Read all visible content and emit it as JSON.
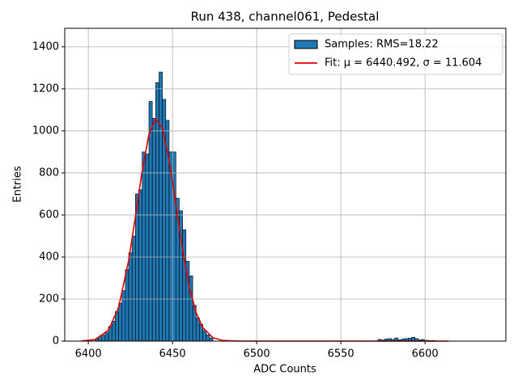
{
  "chart_data": {
    "type": "histogram",
    "title": "Run 438, channel061, Pedestal",
    "xlabel": "ADC Counts",
    "ylabel": "Entries",
    "name": "Samples: RMS=18.22",
    "color": "#1f77b4",
    "bins": [
      6404,
      6406,
      6408,
      6410,
      6412,
      6414,
      6416,
      6418,
      6420,
      6422,
      6424,
      6426,
      6428,
      6430,
      6432,
      6434,
      6436,
      6438,
      6440,
      6442,
      6444,
      6446,
      6448,
      6450,
      6452,
      6454,
      6456,
      6458,
      6460,
      6462,
      6464,
      6466,
      6468,
      6470,
      6472,
      6474,
      6476,
      6478,
      6480,
      6482,
      6484,
      6486,
      6488,
      6490,
      6492,
      6494,
      6496,
      6498,
      6500,
      6502,
      6504,
      6506,
      6508,
      6510,
      6512,
      6514,
      6516,
      6518,
      6520,
      6522,
      6524,
      6526,
      6528,
      6530,
      6532,
      6534,
      6536,
      6538,
      6540,
      6542,
      6544,
      6546,
      6548,
      6550,
      6552,
      6554,
      6556,
      6558,
      6560,
      6562,
      6564,
      6566,
      6568,
      6570,
      6572,
      6574,
      6576,
      6578,
      6580,
      6582,
      6584,
      6586,
      6588,
      6590,
      6592,
      6594,
      6596,
      6598,
      6600,
      6602,
      6604,
      6606
    ],
    "counts": [
      10,
      20,
      28,
      40,
      70,
      95,
      140,
      180,
      240,
      340,
      420,
      500,
      700,
      720,
      900,
      890,
      1140,
      1060,
      1230,
      1280,
      1150,
      1050,
      900,
      900,
      680,
      620,
      530,
      380,
      310,
      170,
      110,
      80,
      50,
      30,
      15,
      0,
      0,
      0,
      0,
      0,
      0,
      0,
      0,
      0,
      0,
      0,
      0,
      0,
      0,
      0,
      0,
      0,
      0,
      0,
      0,
      0,
      0,
      0,
      0,
      0,
      0,
      0,
      0,
      0,
      0,
      0,
      0,
      0,
      0,
      0,
      0,
      0,
      0,
      0,
      0,
      0,
      0,
      0,
      0,
      0,
      0,
      0,
      0,
      0,
      8,
      5,
      10,
      12,
      8,
      15,
      6,
      10,
      12,
      14,
      18,
      12,
      6,
      8,
      4,
      2,
      3
    ],
    "fit": {
      "type": "line",
      "name": "Fit: μ = 6440.492, σ = 11.604",
      "color": "#e00000",
      "x": [
        6396,
        6404,
        6412,
        6418,
        6424,
        6428,
        6432,
        6436,
        6440,
        6444,
        6448,
        6452,
        6456,
        6460,
        6464,
        6468,
        6474,
        6480,
        6490,
        6614
      ],
      "values": [
        0.7,
        7.5,
        52,
        161,
        386,
        593,
        811,
        983,
        1058,
        1013,
        860,
        649,
        434,
        258,
        136,
        64,
        16,
        3,
        0,
        0
      ]
    },
    "xlim": [
      6386,
      6648
    ],
    "ylim": [
      0,
      1488
    ],
    "xticks": [
      6400,
      6450,
      6500,
      6550,
      6600
    ],
    "yticks": [
      0,
      200,
      400,
      600,
      800,
      1000,
      1200,
      1400
    ],
    "grid": true,
    "legend": "upper right"
  }
}
